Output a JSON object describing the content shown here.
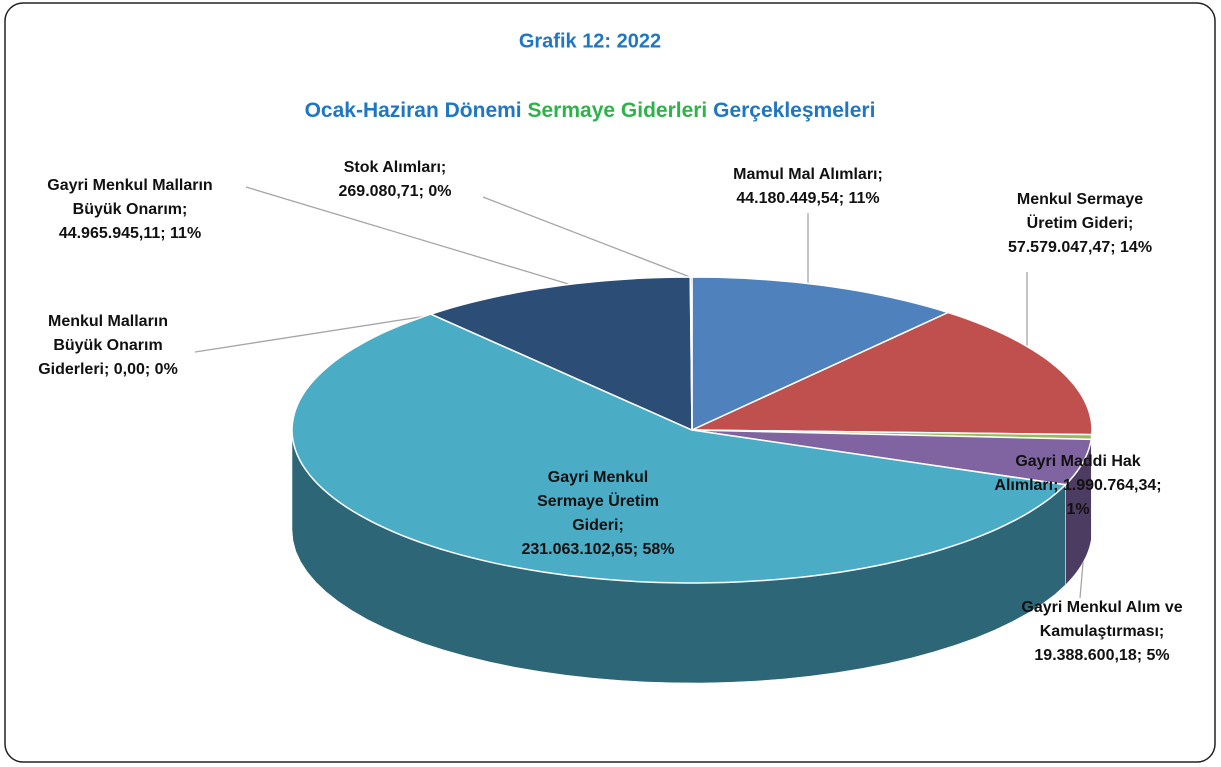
{
  "chart_data": {
    "type": "pie3d",
    "title": "Grafik 12: 2022",
    "subtitle": [
      {
        "text": "Ocak-Haziran Dönemi",
        "color": "#1f77c4"
      },
      {
        "text": "Sermaye Giderleri",
        "color": "#2eb34a"
      },
      {
        "text": "Gerçekleşmeleri",
        "color": "#1f77c4"
      }
    ],
    "values": [
      44180449.54,
      57579047.47,
      1990764.34,
      19388600.18,
      231063102.65,
      0,
      44965945.11,
      269080.71
    ],
    "colors": [
      "#4f81bd",
      "#c0504d",
      "#9bbb59",
      "#8064a2",
      "#4bacc6",
      "#f79646",
      "#2c4d75",
      "#4b6aa0"
    ],
    "value_labels": [
      [
        "Mamul Mal Alımları;",
        "44.180.449,54; 11%"
      ],
      [
        "Menkul Sermaye",
        "Üretim Gideri;",
        "57.579.047,47; 14%"
      ],
      [
        "Gayri Maddi Hak",
        "Alımları; 1.990.764,34;",
        "1%"
      ],
      [
        "Gayri Menkul Alım ve",
        "Kamulaştırması;",
        "19.388.600,18; 5%"
      ],
      [
        "Gayri Menkul",
        "Sermaye Üretim",
        "Gideri;",
        "231.063.102,65; 58%"
      ],
      [
        "Menkul Malların",
        "Büyük Onarım",
        "Giderleri; 0,00; 0%"
      ],
      [
        "Gayri Menkul Malların",
        "Büyük Onarım;",
        "44.965.945,11; 11%"
      ],
      [
        "Stok Alımları;",
        "269.080,71; 0%"
      ]
    ]
  }
}
